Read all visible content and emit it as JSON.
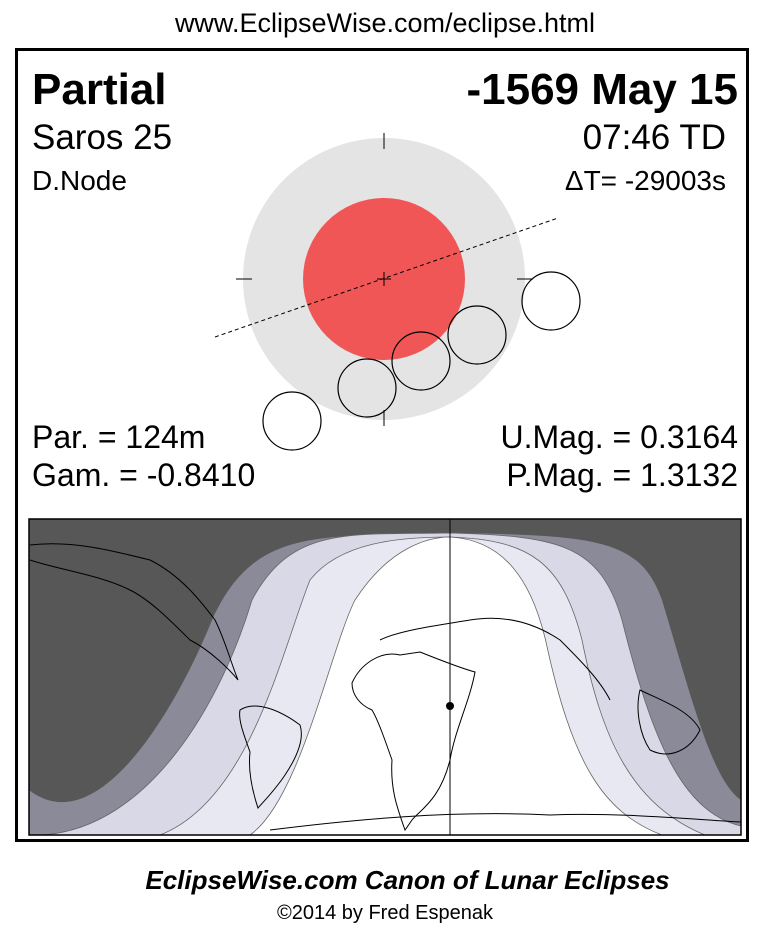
{
  "url": "www.EclipseWise.com/eclipse.html",
  "eclipse": {
    "type": "Partial",
    "date": "-1569 May 15",
    "saros": "Saros  25",
    "time": "07:46 TD",
    "node": "D.Node",
    "delta_t": "ΔT= -29003s",
    "partial_duration": "Par. = 124m",
    "gamma": "Gam. = -0.8410",
    "umbral_mag": "U.Mag. = 0.3164",
    "penumbral_mag": "P.Mag. = 1.3132"
  },
  "colors": {
    "penumbra": "#e4e4e4",
    "umbra": "#f05656",
    "map_night": "#575757",
    "map_band1": "#8a8a98",
    "map_band2": "#d8d8e6",
    "map_band3": "#e8e8f2",
    "map_day": "#ffffff"
  },
  "footer": {
    "title": "EclipseWise.com Canon of Lunar Eclipses",
    "copyright": "©2014 by Fred Espenak"
  }
}
